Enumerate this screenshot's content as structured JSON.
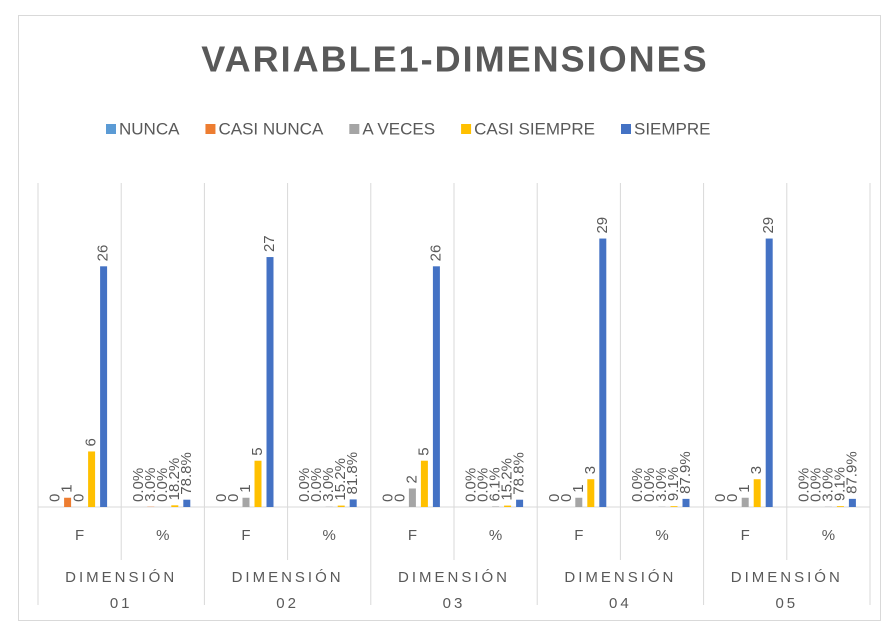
{
  "chart_data": {
    "type": "bar",
    "title": "VARIABLE1-DIMENSIONES",
    "categories": [
      "F",
      "%",
      "F",
      "%",
      "F",
      "%",
      "F",
      "%",
      "F",
      "%"
    ],
    "groups": [
      "DIMENSIÓN 01",
      "DIMENSIÓN 02",
      "DIMENSIÓN 03",
      "DIMENSIÓN 04",
      "DIMENSIÓN 05"
    ],
    "ylim": [
      0,
      35
    ],
    "legend": "top",
    "series": [
      {
        "name": "NUNCA",
        "color": "#5B9BD5",
        "values": [
          0,
          0,
          0,
          0,
          0,
          0,
          0,
          0,
          0,
          0
        ],
        "value_labels": [
          "0",
          "0.0%",
          "0",
          "0.0%",
          "0",
          "0.0%",
          "0",
          "0.0%",
          "0",
          "0.0%"
        ]
      },
      {
        "name": "CASI NUNCA",
        "color": "#ED7D31",
        "values": [
          1,
          0.03,
          0,
          0,
          0,
          0,
          0,
          0,
          0,
          0
        ],
        "value_labels": [
          "1",
          "3.0%",
          "0",
          "0.0%",
          "0",
          "0.0%",
          "0",
          "0.0%",
          "0",
          "0.0%"
        ]
      },
      {
        "name": "A VECES",
        "color": "#A5A5A5",
        "values": [
          0,
          0,
          1,
          0.03,
          2,
          0.061,
          1,
          0.03,
          1,
          0.03
        ],
        "value_labels": [
          "0",
          "0.0%",
          "1",
          "3.0%",
          "2",
          "6.1%",
          "1",
          "3.0%",
          "1",
          "3.0%"
        ]
      },
      {
        "name": "CASI SIEMPRE",
        "color": "#FFC000",
        "values": [
          6,
          0.182,
          5,
          0.152,
          5,
          0.152,
          3,
          0.091,
          3,
          0.091
        ],
        "value_labels": [
          "6",
          "18.2%",
          "5",
          "15.2%",
          "5",
          "15.2%",
          "3",
          "9.1%",
          "3",
          "9.1%"
        ]
      },
      {
        "name": "SIEMPRE",
        "color": "#4472C4",
        "values": [
          26,
          0.788,
          27,
          0.818,
          26,
          0.788,
          29,
          0.879,
          29,
          0.879
        ],
        "value_labels": [
          "26",
          "78.8%",
          "27",
          "81.8%",
          "26",
          "78.8%",
          "29",
          "87.9%",
          "29",
          "87.9%"
        ]
      }
    ]
  }
}
